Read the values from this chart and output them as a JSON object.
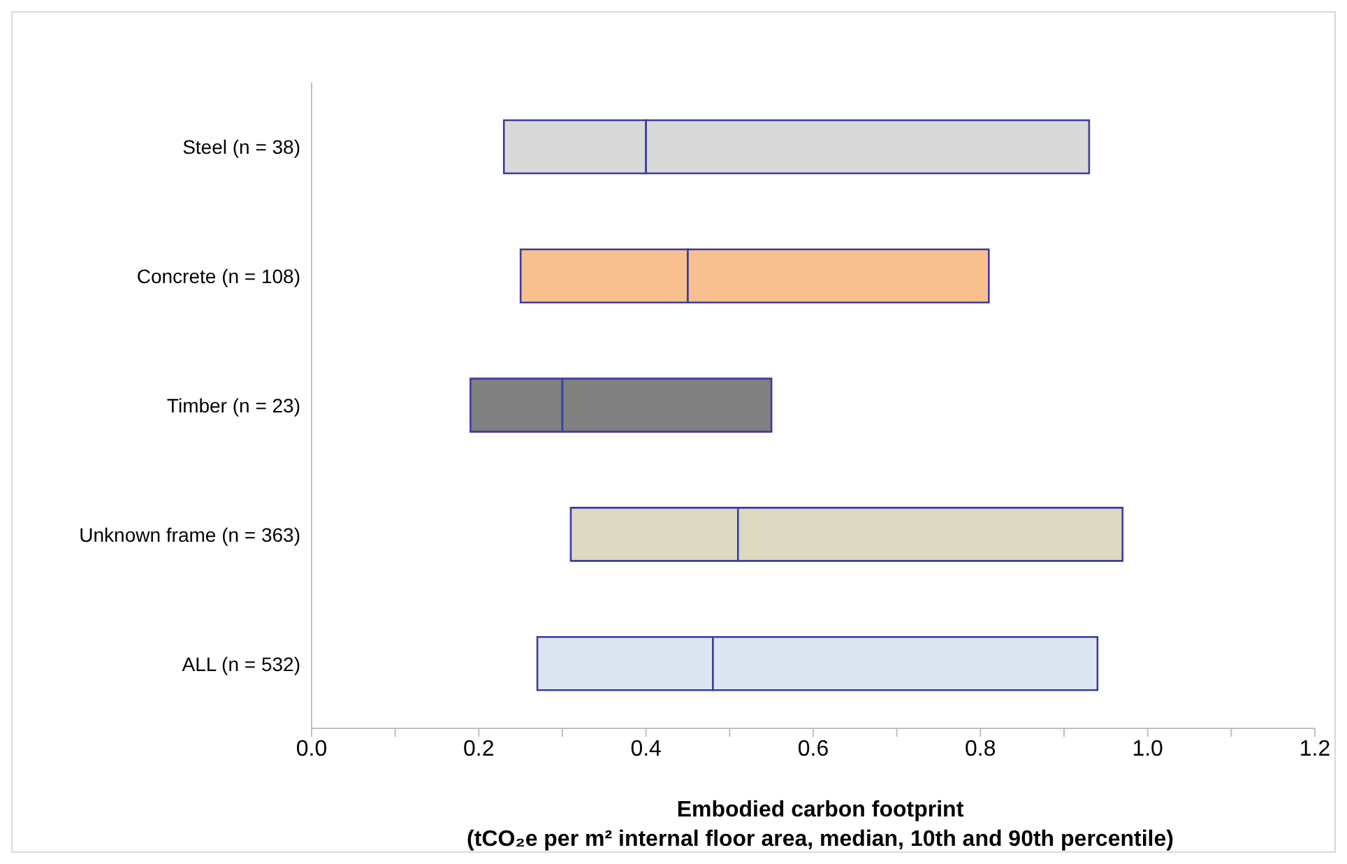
{
  "chart_data": {
    "type": "bar",
    "orientation": "horizontal",
    "xlabel": "Embodied carbon footprint\n(tCO₂e per m² internal floor area, median, 10th and 90th percentile)",
    "categories": [
      "Steel (n = 38)",
      "Concrete (n = 108)",
      "Timber (n = 23)",
      "Unknown frame (n = 363)",
      "ALL (n = 532)"
    ],
    "series": [
      {
        "colors": [
          "#d9d9d9",
          "#f9c08f",
          "#808080",
          "#ddd9c3",
          "#dce6f2"
        ],
        "base": [
          0.23,
          0.25,
          0.19,
          0.31,
          0.27
        ],
        "values": [
          0.17,
          0.2,
          0.11,
          0.2,
          0.21
        ]
      },
      {
        "colors": [
          "#d9d9d9",
          "#f9c08f",
          "#808080",
          "#ddd9c3",
          "#dce6f2"
        ],
        "base": [
          0.4,
          0.45,
          0.3,
          0.51,
          0.48
        ],
        "values": [
          0.53,
          0.36,
          0.25,
          0.46,
          0.46
        ]
      }
    ],
    "xlim": [
      0,
      1.2
    ],
    "xticks": [
      {
        "value": 0,
        "label": "0.0"
      },
      {
        "value": 0.1,
        "label": null
      },
      {
        "value": 0.2,
        "label": "0.2"
      },
      {
        "value": 0.3,
        "label": null
      },
      {
        "value": 0.4,
        "label": "0.4"
      },
      {
        "value": 0.5,
        "label": null
      },
      {
        "value": 0.6,
        "label": "0.6"
      },
      {
        "value": 0.7,
        "label": null
      },
      {
        "value": 0.8,
        "label": "0.8"
      },
      {
        "value": 0.9,
        "label": null
      },
      {
        "value": 1,
        "label": "1.0"
      },
      {
        "value": 1.1,
        "label": null
      },
      {
        "value": 1.2,
        "label": "1.2"
      }
    ]
  }
}
